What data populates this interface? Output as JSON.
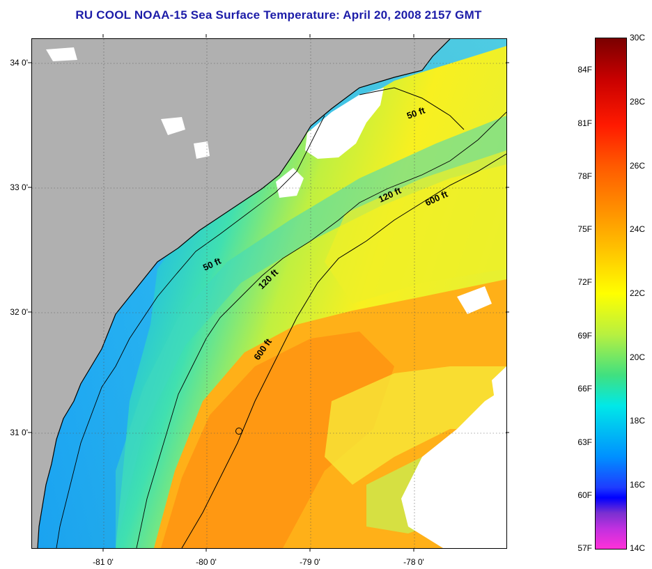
{
  "title": "RU COOL  NOAA-15  Sea Surface Temperature:  April 20, 2008 2157 GMT",
  "axes": {
    "lat_labels": [
      "34 0'",
      "33 0'",
      "32 0'",
      "31 0'"
    ],
    "lon_labels": [
      "-81 0'",
      "-80 0'",
      "-79 0'",
      "-78 0'"
    ]
  },
  "isobaths": {
    "label_50a": "50 ft",
    "label_50b": "50 ft",
    "label_120a": "120 ft",
    "label_120b": "120 ft",
    "label_600a": "600 ft",
    "label_600b": "600 ft"
  },
  "colorbar": {
    "fahrenheit": [
      "84F",
      "81F",
      "78F",
      "75F",
      "72F",
      "69F",
      "66F",
      "63F",
      "60F",
      "57F"
    ],
    "celsius": [
      "30C",
      "28C",
      "26C",
      "24C",
      "22C",
      "20C",
      "18C",
      "16C",
      "14C"
    ]
  },
  "colors": {
    "land": "#b0b0b0",
    "warm": "#ff9a10",
    "cool": "#20a8f0",
    "cloud": "#ffffff"
  }
}
